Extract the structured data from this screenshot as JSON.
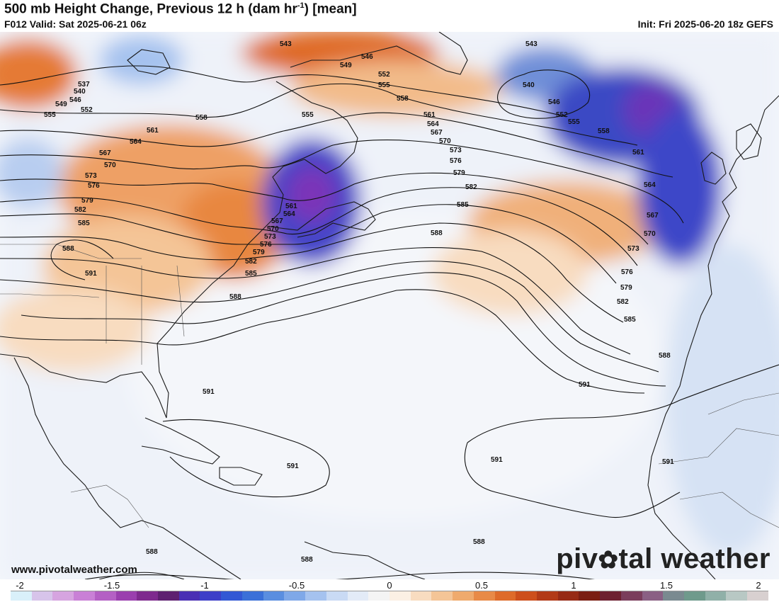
{
  "header": {
    "title": "500 mb Height Change, Previous 12 h (dam hr",
    "title_sup": "-1",
    "title_suffix": ") [mean]",
    "valid": "F012 Valid: Sat 2025-06-21 06z",
    "init": "Init: Fri 2025-06-20 18z GEFS"
  },
  "footer": {
    "url": "www.pivotalweather.com",
    "brand_left": "piv",
    "brand_right": "tal weather"
  },
  "colorbar": {
    "ticks": [
      "-2",
      "-1.5",
      "-1",
      "-0.5",
      "0",
      "0.5",
      "1",
      "1.5",
      "2"
    ],
    "colors": [
      "#d9f0fa",
      "#d7c4ea",
      "#d6a4e0",
      "#c980d6",
      "#b460c4",
      "#9a3fae",
      "#7e2a8e",
      "#5e2070",
      "#4a2fb4",
      "#3d3fc8",
      "#3358d4",
      "#3b70d8",
      "#5a8ee0",
      "#7fa8e8",
      "#a5c2ef",
      "#c9daf4",
      "#e3ebf7",
      "#f4f4f4",
      "#fbf0e4",
      "#f8dcc0",
      "#f4c597",
      "#efaa6d",
      "#e88a47",
      "#de6b2a",
      "#cd4f1c",
      "#b23a17",
      "#962a15",
      "#7a1e12",
      "#6d2030",
      "#7a3d5c",
      "#8a6084",
      "#7a8a90",
      "#6f9a8c",
      "#90b0a8",
      "#b8c8c4",
      "#d8d0d0"
    ]
  },
  "contour_labels": [
    "543",
    "546",
    "549",
    "552",
    "555",
    "558",
    "561",
    "564",
    "567",
    "570",
    "573",
    "576",
    "579",
    "582",
    "585",
    "588",
    "591",
    "540",
    "537"
  ]
}
